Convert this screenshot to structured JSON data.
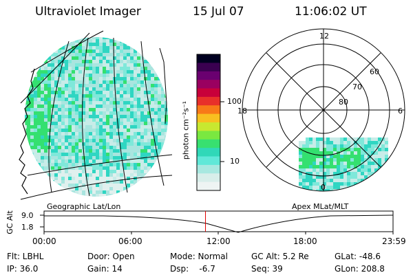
{
  "header": {
    "instrument": "Ultraviolet Imager",
    "date": "15 Jul 07",
    "time": "11:06:02 UT"
  },
  "colorbar": {
    "unit_label": "photon cm⁻²s⁻¹",
    "ticks": [
      "100",
      "10"
    ],
    "colors": [
      "#000020",
      "#3a0050",
      "#6a0070",
      "#9a0060",
      "#c8003a",
      "#e8302a",
      "#f87a18",
      "#f8c020",
      "#c8e830",
      "#7ae840",
      "#38e070",
      "#30d8b8",
      "#60e8d8",
      "#a8e8e0",
      "#d8eeea",
      "#eef4f3"
    ]
  },
  "map_left": {
    "caption": "Geographic Lat/Lon",
    "palette": [
      "#2fd6c2",
      "#7fe8da",
      "#c8ece8",
      "#a9e5df",
      "#34e070",
      "#8fe6d5",
      "#e0f0ee"
    ]
  },
  "polar": {
    "caption": "Apex MLat/MLT",
    "mlt_labels": [
      "12",
      "18",
      "6",
      "0"
    ],
    "lat_labels": [
      "60",
      "70",
      "80"
    ]
  },
  "altitude_strip": {
    "axis_label": "GC Alt",
    "y_ticks": [
      "9.0",
      "1.8"
    ],
    "x_ticks": [
      "00:00",
      "06:00",
      "12:00",
      "18:00",
      "23:59"
    ],
    "current_time_fraction": 0.4625,
    "marker_color": "#e00000"
  },
  "status": {
    "flt": "Flt: LBHL",
    "ip": "IP: 36.0",
    "door": "Door: Open",
    "gain": "Gain: 14",
    "mode": "Mode: Normal",
    "dsp": "Dsp:    -6.7",
    "gcalt": "GC Alt: 5.2 Re",
    "seq": "Seq: 39",
    "glat": "GLat: -48.6",
    "glon": "GLon: 208.8"
  }
}
